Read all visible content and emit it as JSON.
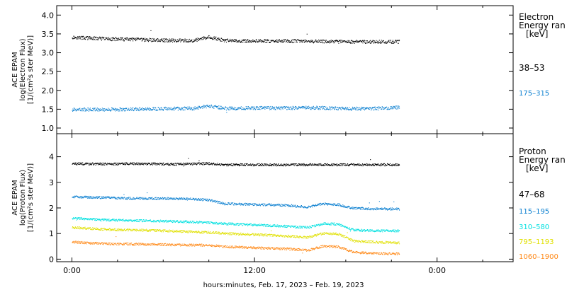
{
  "xlabel": "hours:minutes, Feb. 17, 2023 – Feb. 19, 2023",
  "x_ticks": [
    "0:00",
    "12:00",
    "0:00"
  ],
  "chart_data": [
    {
      "type": "scatter",
      "panel": "electron",
      "ylabel": [
        "ACE EPAM",
        "log(Electron Flux)",
        "[1/(cm²s ster MeV)]"
      ],
      "ylim": [
        0.85,
        4.25
      ],
      "y_ticks": [
        "1.0",
        "1.5",
        "2.0",
        "2.5",
        "3.0",
        "3.5",
        "4.0"
      ],
      "xlim_hours": [
        -1,
        29
      ],
      "legend_title": [
        "Electron",
        "Energy ran",
        "[keV]"
      ],
      "series": [
        {
          "name": "38–53",
          "color": "#000000",
          "x": [
            0,
            2,
            4,
            6,
            8,
            9,
            10,
            12,
            14,
            16,
            18,
            20,
            21.5
          ],
          "y": [
            3.42,
            3.38,
            3.36,
            3.34,
            3.33,
            3.43,
            3.33,
            3.32,
            3.32,
            3.31,
            3.3,
            3.3,
            3.3
          ]
        },
        {
          "name": "175–315",
          "color": "#0a7fd0",
          "x": [
            0,
            2,
            4,
            6,
            8,
            9,
            10,
            12,
            14,
            16,
            18,
            20,
            21.5
          ],
          "y": [
            1.5,
            1.5,
            1.51,
            1.52,
            1.53,
            1.6,
            1.53,
            1.54,
            1.54,
            1.55,
            1.52,
            1.53,
            1.56
          ]
        }
      ]
    },
    {
      "type": "scatter",
      "panel": "proton",
      "ylabel": [
        "ACE EPAM",
        "log(Proton Flux)",
        "[1/(cm²s ster MeV)]"
      ],
      "ylim": [
        -0.1,
        4.9
      ],
      "y_ticks": [
        "0",
        "1",
        "2",
        "3",
        "4"
      ],
      "xlim_hours": [
        -1,
        29
      ],
      "legend_title": [
        "Proton",
        "Energy ran",
        "[keV]"
      ],
      "series": [
        {
          "name": "47–68",
          "color": "#000000",
          "x": [
            0,
            2,
            3.5,
            5,
            7,
            9,
            10,
            12,
            14,
            16,
            18,
            20,
            21.5
          ],
          "y": [
            3.74,
            3.73,
            3.74,
            3.74,
            3.72,
            3.75,
            3.7,
            3.7,
            3.7,
            3.7,
            3.7,
            3.7,
            3.7
          ]
        },
        {
          "name": "115–195",
          "color": "#0a7fd0",
          "x": [
            0,
            2,
            4,
            6,
            8,
            9,
            10,
            12,
            14,
            15.5,
            16.5,
            17.5,
            18.5,
            20,
            21.5
          ],
          "y": [
            2.45,
            2.42,
            2.38,
            2.38,
            2.36,
            2.32,
            2.18,
            2.15,
            2.12,
            2.05,
            2.18,
            2.14,
            2.0,
            1.98,
            1.97
          ]
        },
        {
          "name": "310–580",
          "color": "#00e0e0",
          "x": [
            0,
            2,
            4,
            6,
            8,
            9,
            10,
            12,
            14,
            15.5,
            16.5,
            17.5,
            18.5,
            20,
            21.5
          ],
          "y": [
            1.62,
            1.55,
            1.52,
            1.5,
            1.46,
            1.44,
            1.4,
            1.35,
            1.3,
            1.25,
            1.4,
            1.38,
            1.15,
            1.12,
            1.12
          ]
        },
        {
          "name": "795–1193",
          "color": "#e0e000",
          "x": [
            0,
            2,
            4,
            6,
            8,
            9,
            10,
            12,
            14,
            15.5,
            16.5,
            17.5,
            18.5,
            20,
            21.5
          ],
          "y": [
            1.25,
            1.18,
            1.15,
            1.12,
            1.08,
            1.06,
            1.02,
            0.97,
            0.92,
            0.86,
            1.02,
            1.0,
            0.72,
            0.68,
            0.65
          ]
        },
        {
          "name": "1060–1900",
          "color": "#ff8a1a",
          "x": [
            0,
            2,
            4,
            6,
            8,
            9,
            10,
            12,
            14,
            15.5,
            16.5,
            17.5,
            18.5,
            20,
            21.5
          ],
          "y": [
            0.68,
            0.62,
            0.6,
            0.58,
            0.56,
            0.56,
            0.5,
            0.46,
            0.42,
            0.36,
            0.52,
            0.5,
            0.28,
            0.24,
            0.22
          ]
        }
      ]
    }
  ]
}
